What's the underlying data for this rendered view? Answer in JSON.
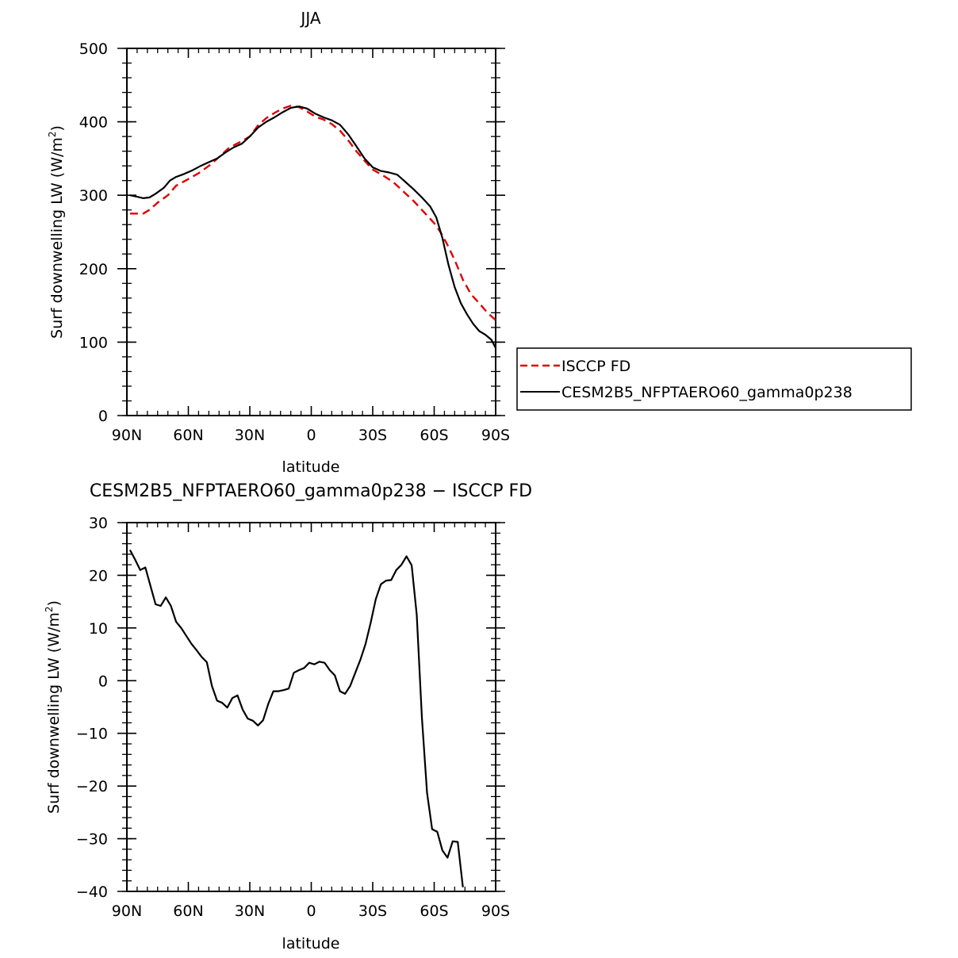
{
  "chart_data": [
    {
      "type": "line",
      "title": "JJA",
      "xlabel": "latitude",
      "ylabel_main": "Surf downwelling LW (W/m",
      "ylabel_sup": "2",
      "ylabel_close": ")",
      "xlim": [
        90,
        -90
      ],
      "ylim": [
        0,
        500
      ],
      "xticks": [
        {
          "value": 90,
          "label": "90N"
        },
        {
          "value": 60,
          "label": "60N"
        },
        {
          "value": 30,
          "label": "30N"
        },
        {
          "value": 0,
          "label": "0"
        },
        {
          "value": -30,
          "label": "30S"
        },
        {
          "value": -60,
          "label": "60S"
        },
        {
          "value": -90,
          "label": "90S"
        }
      ],
      "yticks": [
        {
          "value": 0,
          "label": "0"
        },
        {
          "value": 100,
          "label": "100"
        },
        {
          "value": 200,
          "label": "200"
        },
        {
          "value": 300,
          "label": "300"
        },
        {
          "value": 400,
          "label": "400"
        },
        {
          "value": 500,
          "label": "500"
        }
      ],
      "grid": false,
      "legend": "right",
      "series": [
        {
          "name": "ISCCP FD",
          "color": "#e00000",
          "style": "dashed",
          "points": [
            [
              88.5,
              275
            ],
            [
              85,
              275
            ],
            [
              82,
              275
            ],
            [
              79,
              280
            ],
            [
              75,
              290
            ],
            [
              70,
              300
            ],
            [
              66,
              313
            ],
            [
              60,
              322
            ],
            [
              55,
              330
            ],
            [
              50,
              340
            ],
            [
              45,
              352
            ],
            [
              40,
              365
            ],
            [
              35,
              372
            ],
            [
              30,
              380
            ],
            [
              26,
              395
            ],
            [
              22,
              405
            ],
            [
              18,
              412
            ],
            [
              14,
              418
            ],
            [
              10,
              422
            ],
            [
              6,
              420
            ],
            [
              2,
              414
            ],
            [
              -2,
              407
            ],
            [
              -6,
              403
            ],
            [
              -10,
              397
            ],
            [
              -14,
              388
            ],
            [
              -18,
              375
            ],
            [
              -22,
              360
            ],
            [
              -26,
              347
            ],
            [
              -30,
              335
            ],
            [
              -35,
              327
            ],
            [
              -40,
              318
            ],
            [
              -45,
              305
            ],
            [
              -50,
              292
            ],
            [
              -55,
              277
            ],
            [
              -60,
              262
            ],
            [
              -63,
              250
            ],
            [
              -66,
              235
            ],
            [
              -70,
              212
            ],
            [
              -74,
              185
            ],
            [
              -78,
              165
            ],
            [
              -82,
              153
            ],
            [
              -86,
              140
            ],
            [
              -90,
              130
            ]
          ]
        },
        {
          "name": "CESM2B5_NFPTAERO60_gamma0p238",
          "color": "#000000",
          "style": "solid",
          "points": [
            [
              88.5,
              300
            ],
            [
              85,
              298
            ],
            [
              82,
              296
            ],
            [
              79,
              297
            ],
            [
              76,
              302
            ],
            [
              72,
              310
            ],
            [
              69,
              320
            ],
            [
              66,
              325
            ],
            [
              62,
              329
            ],
            [
              58,
              334
            ],
            [
              54,
              340
            ],
            [
              50,
              345
            ],
            [
              46,
              350
            ],
            [
              42,
              358
            ],
            [
              38,
              365
            ],
            [
              34,
              370
            ],
            [
              30,
              380
            ],
            [
              26,
              392
            ],
            [
              22,
              400
            ],
            [
              18,
              406
            ],
            [
              14,
              413
            ],
            [
              10,
              419
            ],
            [
              6,
              421
            ],
            [
              2,
              418
            ],
            [
              -2,
              411
            ],
            [
              -6,
              406
            ],
            [
              -10,
              402
            ],
            [
              -14,
              396
            ],
            [
              -18,
              383
            ],
            [
              -22,
              367
            ],
            [
              -26,
              350
            ],
            [
              -30,
              338
            ],
            [
              -34,
              333
            ],
            [
              -38,
              331
            ],
            [
              -42,
              328
            ],
            [
              -46,
              318
            ],
            [
              -50,
              308
            ],
            [
              -54,
              297
            ],
            [
              -58,
              285
            ],
            [
              -61,
              270
            ],
            [
              -64,
              242
            ],
            [
              -67,
              205
            ],
            [
              -70,
              175
            ],
            [
              -73,
              153
            ],
            [
              -76,
              138
            ],
            [
              -79,
              125
            ],
            [
              -82,
              115
            ],
            [
              -85,
              110
            ],
            [
              -88,
              103
            ],
            [
              -90,
              92
            ]
          ]
        }
      ]
    },
    {
      "type": "line",
      "title": "CESM2B5_NFPTAERO60_gamma0p238 − ISCCP FD",
      "xlabel": "latitude",
      "ylabel_main": "Surf downwelling LW (W/m",
      "ylabel_sup": "2",
      "ylabel_close": ")",
      "xlim": [
        90,
        -90
      ],
      "ylim": [
        -40,
        30
      ],
      "xticks": [
        {
          "value": 90,
          "label": "90N"
        },
        {
          "value": 60,
          "label": "60N"
        },
        {
          "value": 30,
          "label": "30N"
        },
        {
          "value": 0,
          "label": "0"
        },
        {
          "value": -30,
          "label": "30S"
        },
        {
          "value": -60,
          "label": "60S"
        },
        {
          "value": -90,
          "label": "90S"
        }
      ],
      "yticks": [
        {
          "value": -40,
          "label": "−40"
        },
        {
          "value": -30,
          "label": "−30"
        },
        {
          "value": -20,
          "label": "−20"
        },
        {
          "value": -10,
          "label": "−10"
        },
        {
          "value": 0,
          "label": "0"
        },
        {
          "value": 10,
          "label": "10"
        },
        {
          "value": 20,
          "label": "20"
        },
        {
          "value": 30,
          "label": "30"
        }
      ],
      "grid": false,
      "series": [
        {
          "color": "#000000",
          "style": "solid",
          "points": [
            [
              88.5,
              24.8
            ],
            [
              86,
              23
            ],
            [
              83.5,
              21
            ],
            [
              81,
              21.5
            ],
            [
              78.5,
              18
            ],
            [
              76,
              14.5
            ],
            [
              73.5,
              14.2
            ],
            [
              71,
              15.8
            ],
            [
              68.5,
              14.2
            ],
            [
              66,
              11.2
            ],
            [
              63.5,
              10
            ],
            [
              61,
              8.5
            ],
            [
              58.5,
              7
            ],
            [
              56,
              5.8
            ],
            [
              53.5,
              4.5
            ],
            [
              51,
              3.5
            ],
            [
              48.5,
              -1
            ],
            [
              46,
              -3.8
            ],
            [
              43.5,
              -4.2
            ],
            [
              41,
              -5.1
            ],
            [
              38.5,
              -3.3
            ],
            [
              36,
              -2.8
            ],
            [
              33.5,
              -5.5
            ],
            [
              31,
              -7.2
            ],
            [
              28.5,
              -7.6
            ],
            [
              26,
              -8.5
            ],
            [
              23.5,
              -7.5
            ],
            [
              21,
              -4.4
            ],
            [
              18.5,
              -2
            ],
            [
              16,
              -2
            ],
            [
              13.5,
              -1.8
            ],
            [
              11,
              -1.5
            ],
            [
              8.5,
              1.5
            ],
            [
              6,
              2
            ],
            [
              3.5,
              2.4
            ],
            [
              1,
              3.4
            ],
            [
              -1.5,
              3.1
            ],
            [
              -4,
              3.6
            ],
            [
              -6.5,
              3.4
            ],
            [
              -9,
              2
            ],
            [
              -11.5,
              1
            ],
            [
              -14,
              -2
            ],
            [
              -16.5,
              -2.5
            ],
            [
              -19,
              -1
            ],
            [
              -21.5,
              1.5
            ],
            [
              -24,
              4
            ],
            [
              -26.5,
              7
            ],
            [
              -29,
              11
            ],
            [
              -31.5,
              15.5
            ],
            [
              -34,
              18.3
            ],
            [
              -36.5,
              19
            ],
            [
              -39,
              19.1
            ],
            [
              -41.5,
              21
            ],
            [
              -44,
              22
            ],
            [
              -46.5,
              23.6
            ],
            [
              -49,
              21.9
            ],
            [
              -51.5,
              12.5
            ],
            [
              -54,
              -7
            ],
            [
              -56.5,
              -21.3
            ],
            [
              -59,
              -28.2
            ],
            [
              -61.5,
              -28.7
            ],
            [
              -64,
              -32.2
            ],
            [
              -66.5,
              -33.6
            ],
            [
              -69,
              -30.5
            ],
            [
              -71.5,
              -30.6
            ],
            [
              -74,
              -39.2
            ]
          ]
        }
      ]
    }
  ]
}
